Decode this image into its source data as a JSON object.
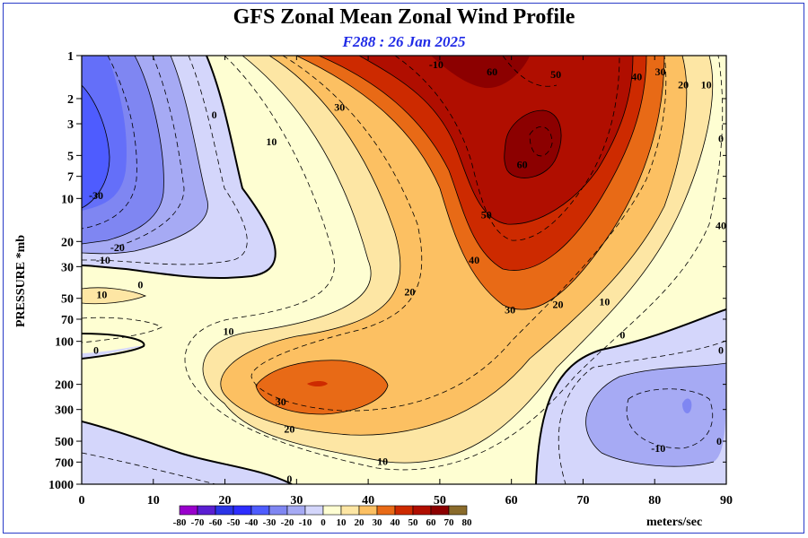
{
  "chart_data": {
    "type": "heatmap",
    "title": "GFS Zonal Mean Zonal Wind Profile",
    "subtitle": "F288 : 26 Jan 2025",
    "xlabel": "",
    "ylabel": "PRESSURE *mb",
    "x_ticks": [
      0,
      10,
      20,
      30,
      40,
      50,
      60,
      70,
      80,
      90
    ],
    "y_ticks": [
      1,
      2,
      3,
      5,
      7,
      10,
      20,
      30,
      50,
      70,
      100,
      200,
      300,
      500,
      700,
      1000
    ],
    "xlim": [
      0,
      90
    ],
    "ylim": [
      1000,
      1
    ],
    "y_scale": "log",
    "colorbar": {
      "levels": [
        -80,
        -70,
        -60,
        -50,
        -40,
        -30,
        -20,
        -10,
        0,
        10,
        20,
        30,
        40,
        50,
        60,
        70,
        80
      ],
      "colors": [
        "#9900cc",
        "#5a1ed2",
        "#2b34e6",
        "#2d2dff",
        "#4e5cff",
        "#7f86f2",
        "#a6aaf4",
        "#d4d6fb",
        "#fefed2",
        "#fde6a4",
        "#fcc062",
        "#e86a16",
        "#cd2a00",
        "#b00e00",
        "#8c0000",
        "#8a6b2b"
      ],
      "units_label": "meters/sec"
    },
    "contour_labels": [
      {
        "value": "-10",
        "x": 49.5,
        "p": 1.0
      },
      {
        "value": "60",
        "x": 57.3,
        "p": 1.3
      },
      {
        "value": "50",
        "x": 66.2,
        "p": 1.35
      },
      {
        "value": "40",
        "x": 77.5,
        "p": 1.4
      },
      {
        "value": "30",
        "x": 80.8,
        "p": 1.3
      },
      {
        "value": "20",
        "x": 84.0,
        "p": 1.6
      },
      {
        "value": "10",
        "x": 87.2,
        "p": 1.6
      },
      {
        "value": "30",
        "x": 36.0,
        "p": 2.3
      },
      {
        "value": "0",
        "x": 18.5,
        "p": 2.6
      },
      {
        "value": "0",
        "x": 90.0,
        "p": 3.8
      },
      {
        "value": "10",
        "x": 26.5,
        "p": 4.0
      },
      {
        "value": "60",
        "x": 61.5,
        "p": 5.8
      },
      {
        "value": "-30",
        "x": 2.0,
        "p": 9.5
      },
      {
        "value": "50",
        "x": 56.5,
        "p": 13.0
      },
      {
        "value": "40",
        "x": 90.0,
        "p": 15.5
      },
      {
        "value": "-20",
        "x": 5.0,
        "p": 22.0
      },
      {
        "value": "-10",
        "x": 3.0,
        "p": 27.0
      },
      {
        "value": "40",
        "x": 54.8,
        "p": 27.0
      },
      {
        "value": "0",
        "x": 8.2,
        "p": 40.0
      },
      {
        "value": "10",
        "x": 2.8,
        "p": 47.0
      },
      {
        "value": "20",
        "x": 45.8,
        "p": 45.0
      },
      {
        "value": "20",
        "x": 66.5,
        "p": 55.0
      },
      {
        "value": "10",
        "x": 73.0,
        "p": 53.0
      },
      {
        "value": "30",
        "x": 59.8,
        "p": 60.0
      },
      {
        "value": "10",
        "x": 20.5,
        "p": 85.0
      },
      {
        "value": "0",
        "x": 75.5,
        "p": 90.0
      },
      {
        "value": "0",
        "x": 2.0,
        "p": 115.0
      },
      {
        "value": "0",
        "x": 90.0,
        "p": 115.0
      },
      {
        "value": "30",
        "x": 27.8,
        "p": 265.0
      },
      {
        "value": "20",
        "x": 29.0,
        "p": 410.0
      },
      {
        "value": "-10",
        "x": 80.5,
        "p": 560.0
      },
      {
        "value": "0",
        "x": 89.0,
        "p": 500.0
      },
      {
        "value": "10",
        "x": 42.0,
        "p": 690.0
      },
      {
        "value": "0",
        "x": 29.0,
        "p": 960.0
      }
    ]
  }
}
